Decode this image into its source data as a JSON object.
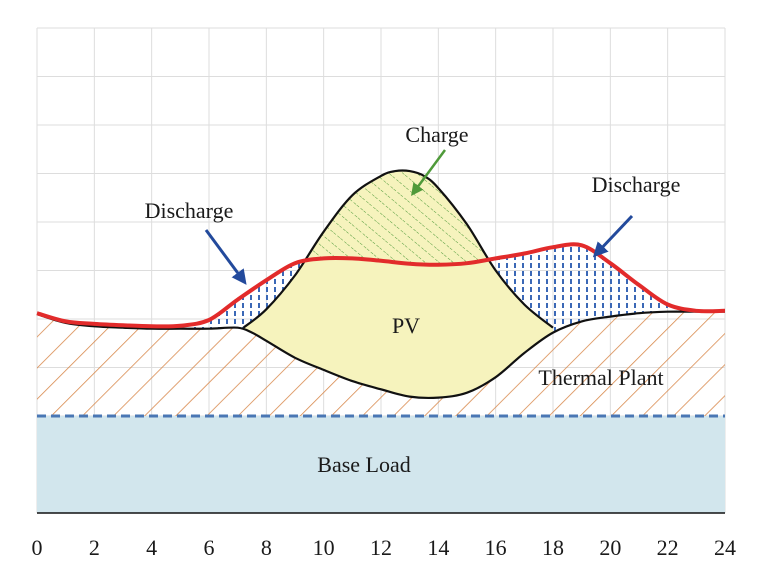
{
  "chart_data": {
    "type": "area",
    "title": "",
    "xlabel": "",
    "ylabel": "",
    "xlim": [
      0,
      24
    ],
    "x_ticks": [
      "0",
      "2",
      "4",
      "6",
      "8",
      "10",
      "12",
      "14",
      "16",
      "18",
      "20",
      "22",
      "24"
    ],
    "grid": true,
    "annotations": {
      "charge": "Charge",
      "discharge_left": "Discharge",
      "discharge_right": "Discharge",
      "pv": "PV",
      "thermal": "Thermal Plant",
      "base": "Base Load"
    },
    "series": [
      {
        "values": {
          "base_load": 2.0,
          "thermal_plus_base": [
            [
              0,
              4.1
            ],
            [
              1,
              3.92
            ],
            [
              2,
              3.85
            ],
            [
              3,
              3.82
            ],
            [
              4,
              3.8
            ],
            [
              5,
              3.8
            ],
            [
              6,
              3.8
            ],
            [
              7,
              3.82
            ],
            [
              7.5,
              3.72
            ],
            [
              8,
              3.55
            ],
            [
              9,
              3.2
            ],
            [
              10,
              2.95
            ],
            [
              11,
              2.72
            ],
            [
              12,
              2.55
            ],
            [
              13,
              2.4
            ],
            [
              14,
              2.38
            ],
            [
              15,
              2.48
            ],
            [
              16,
              2.8
            ],
            [
              17,
              3.3
            ],
            [
              18,
              3.72
            ],
            [
              19,
              3.95
            ],
            [
              20,
              4.05
            ],
            [
              21,
              4.12
            ],
            [
              22,
              4.15
            ],
            [
              23,
              4.15
            ],
            [
              24,
              4.15
            ]
          ],
          "demand_line": [
            [
              0,
              4.12
            ],
            [
              1,
              3.95
            ],
            [
              2,
              3.9
            ],
            [
              3,
              3.87
            ],
            [
              4,
              3.85
            ],
            [
              5,
              3.86
            ],
            [
              6,
              3.98
            ],
            [
              7,
              4.4
            ],
            [
              8,
              4.8
            ],
            [
              9,
              5.15
            ],
            [
              10,
              5.25
            ],
            [
              11,
              5.25
            ],
            [
              12,
              5.2
            ],
            [
              13,
              5.14
            ],
            [
              14,
              5.12
            ],
            [
              15,
              5.15
            ],
            [
              16,
              5.25
            ],
            [
              17,
              5.35
            ],
            [
              18,
              5.48
            ],
            [
              19,
              5.52
            ],
            [
              20,
              5.15
            ],
            [
              21,
              4.7
            ],
            [
              22,
              4.3
            ],
            [
              23,
              4.17
            ],
            [
              24,
              4.17
            ]
          ],
          "pv_top": [
            [
              7.2,
              3.82
            ],
            [
              8,
              4.2
            ],
            [
              9,
              4.9
            ],
            [
              10,
              5.8
            ],
            [
              11,
              6.55
            ],
            [
              12,
              6.95
            ],
            [
              12.5,
              7.05
            ],
            [
              13,
              7.05
            ],
            [
              13.5,
              6.95
            ],
            [
              14,
              6.7
            ],
            [
              15,
              5.95
            ],
            [
              16,
              5.0
            ],
            [
              17,
              4.3
            ],
            [
              18,
              3.82
            ]
          ]
        }
      }
    ]
  }
}
